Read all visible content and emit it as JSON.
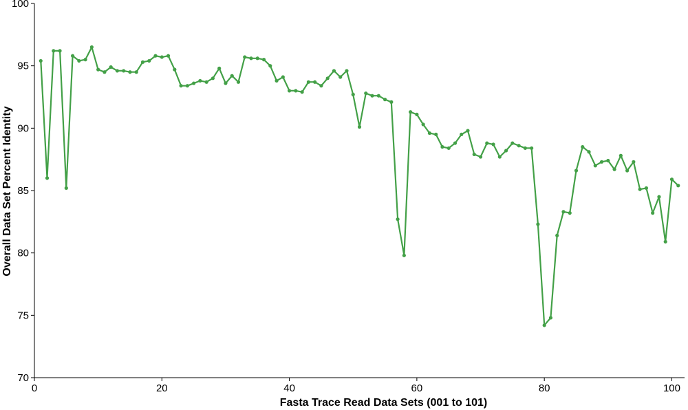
{
  "chart_data": {
    "type": "line",
    "title": "",
    "xlabel": "Fasta Trace Read Data Sets (001 to 101)",
    "ylabel": "Overall Data Set Percent Identity",
    "xlim": [
      0,
      102
    ],
    "ylim": [
      70,
      100
    ],
    "xticks": [
      0,
      20,
      40,
      60,
      80,
      100
    ],
    "yticks": [
      70,
      75,
      80,
      85,
      90,
      95,
      100
    ],
    "grid": false,
    "legend": "none",
    "series": [
      {
        "color": "#43a047",
        "marker": "circle",
        "x": [
          1,
          2,
          3,
          4,
          5,
          6,
          7,
          8,
          9,
          10,
          11,
          12,
          13,
          14,
          15,
          16,
          17,
          18,
          19,
          20,
          21,
          22,
          23,
          24,
          25,
          26,
          27,
          28,
          29,
          30,
          31,
          32,
          33,
          34,
          35,
          36,
          37,
          38,
          39,
          40,
          41,
          42,
          43,
          44,
          45,
          46,
          47,
          48,
          49,
          50,
          51,
          52,
          53,
          54,
          55,
          56,
          57,
          58,
          59,
          60,
          61,
          62,
          63,
          64,
          65,
          66,
          67,
          68,
          69,
          70,
          71,
          72,
          73,
          74,
          75,
          76,
          77,
          78,
          79,
          80,
          81,
          82,
          83,
          84,
          85,
          86,
          87,
          88,
          89,
          90,
          91,
          92,
          93,
          94,
          95,
          96,
          97,
          98,
          99,
          100,
          101
        ],
        "y": [
          95.4,
          86.0,
          96.2,
          96.2,
          85.2,
          95.8,
          95.4,
          95.5,
          96.5,
          94.7,
          94.5,
          94.9,
          94.6,
          94.6,
          94.5,
          94.5,
          95.3,
          95.4,
          95.8,
          95.7,
          95.8,
          94.7,
          93.4,
          93.4,
          93.6,
          93.8,
          93.7,
          94.0,
          94.8,
          93.6,
          94.2,
          93.7,
          95.7,
          95.6,
          95.6,
          95.5,
          95.0,
          93.8,
          94.1,
          93.0,
          93.0,
          92.9,
          93.7,
          93.7,
          93.4,
          94.0,
          94.6,
          94.1,
          94.6,
          92.7,
          90.1,
          92.8,
          92.6,
          92.6,
          92.3,
          92.1,
          82.7,
          79.8,
          91.3,
          91.1,
          90.3,
          89.6,
          89.5,
          88.5,
          88.4,
          88.8,
          89.5,
          89.8,
          87.9,
          87.7,
          88.8,
          88.7,
          87.7,
          88.2,
          88.8,
          88.6,
          88.4,
          88.4,
          82.3,
          74.2,
          74.8,
          81.4,
          83.3,
          83.2,
          86.6,
          88.5,
          88.1,
          87.0,
          87.3,
          87.4,
          86.7,
          87.8,
          86.6,
          87.3,
          85.1,
          85.2,
          83.2,
          84.5,
          80.9,
          85.9,
          85.4
        ]
      }
    ]
  }
}
